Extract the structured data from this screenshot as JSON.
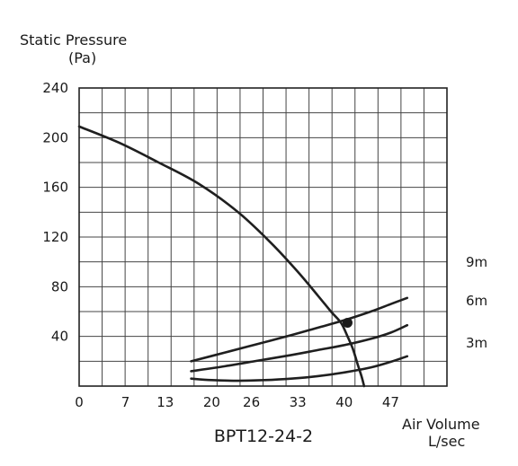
{
  "chart_data": {
    "type": "line",
    "title": "BPT12-24-2",
    "ylabel_line1": "Static Pressure",
    "ylabel_line2": "(Pa)",
    "xlabel_line1": "Air Volume",
    "xlabel_line2": "L/sec",
    "xlim": [
      0,
      55.5
    ],
    "ylim": [
      0,
      240
    ],
    "x_ticks": [
      {
        "value": 0,
        "label": "0"
      },
      {
        "value": 7,
        "label": "7"
      },
      {
        "value": 13,
        "label": "13"
      },
      {
        "value": 20,
        "label": "20"
      },
      {
        "value": 26,
        "label": "26"
      },
      {
        "value": 33,
        "label": "33"
      },
      {
        "value": 40,
        "label": "40"
      },
      {
        "value": 47,
        "label": "47"
      }
    ],
    "y_ticks": [
      {
        "value": 40,
        "label": "40"
      },
      {
        "value": 80,
        "label": "80"
      },
      {
        "value": 120,
        "label": "120"
      },
      {
        "value": 160,
        "label": "160"
      },
      {
        "value": 200,
        "label": "200"
      },
      {
        "value": 240,
        "label": "240"
      }
    ],
    "grid": true,
    "series": [
      {
        "kind": "fan-curve",
        "x": [
          0,
          6,
          12,
          18,
          24,
          29,
          33,
          36,
          38,
          39.5,
          40.5,
          41.3,
          42,
          42.6,
          43
        ],
        "y": [
          209,
          196,
          180,
          163,
          140,
          115,
          92,
          73,
          60,
          51,
          40,
          30,
          18,
          8,
          0
        ]
      },
      {
        "name": "9m",
        "kind": "duct-curve",
        "x": [
          16.9,
          22,
          27,
          32,
          36,
          40,
          44,
          47,
          49.5
        ],
        "y": [
          20,
          27,
          34,
          41,
          47,
          53,
          60,
          66,
          71
        ]
      },
      {
        "name": "6m",
        "kind": "duct-curve",
        "x": [
          16.9,
          22,
          27,
          32,
          36,
          40,
          44,
          47,
          49.5
        ],
        "y": [
          12,
          16,
          20.5,
          25,
          29,
          33,
          38,
          43,
          49
        ]
      },
      {
        "name": "3m",
        "kind": "duct-curve",
        "x": [
          16.9,
          20,
          24,
          28,
          32,
          36,
          40,
          44,
          47,
          49.5
        ],
        "y": [
          6,
          4.8,
          4.3,
          4.8,
          6,
          8,
          11,
          15,
          19.5,
          24
        ]
      }
    ],
    "operating_point": {
      "x": 40.5,
      "y": 51
    },
    "curve_labels": [
      "9m",
      "6m",
      "3m"
    ]
  }
}
